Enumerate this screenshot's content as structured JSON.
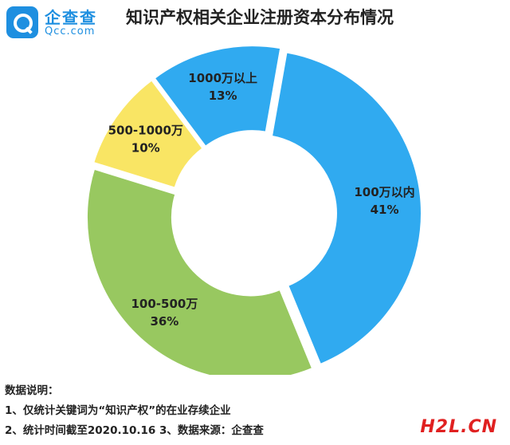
{
  "brand": {
    "name": "企查查",
    "sub": "Qcc.com"
  },
  "chart_data": {
    "type": "pie",
    "title": "知识产权相关企业注册资本分布情况",
    "slices": [
      {
        "label": "100万以内",
        "pct_text": "41%",
        "value": 41,
        "color": "#30aaf0"
      },
      {
        "label": "100-500万",
        "pct_text": "36%",
        "value": 36,
        "color": "#98c860"
      },
      {
        "label": "500-1000万",
        "pct_text": "10%",
        "value": 10,
        "color": "#f9e564"
      },
      {
        "label": "1000万以上",
        "pct_text": "13%",
        "value": 13,
        "color": "#30aaf0"
      }
    ]
  },
  "notes": {
    "heading": "数据说明：",
    "line1": "1、仅统计关键词为“知识产权”的在业存续企业",
    "line2": "2、统计时间截至2020.10.16  3、数据来源：企查查"
  },
  "watermark": "H2L.CN"
}
